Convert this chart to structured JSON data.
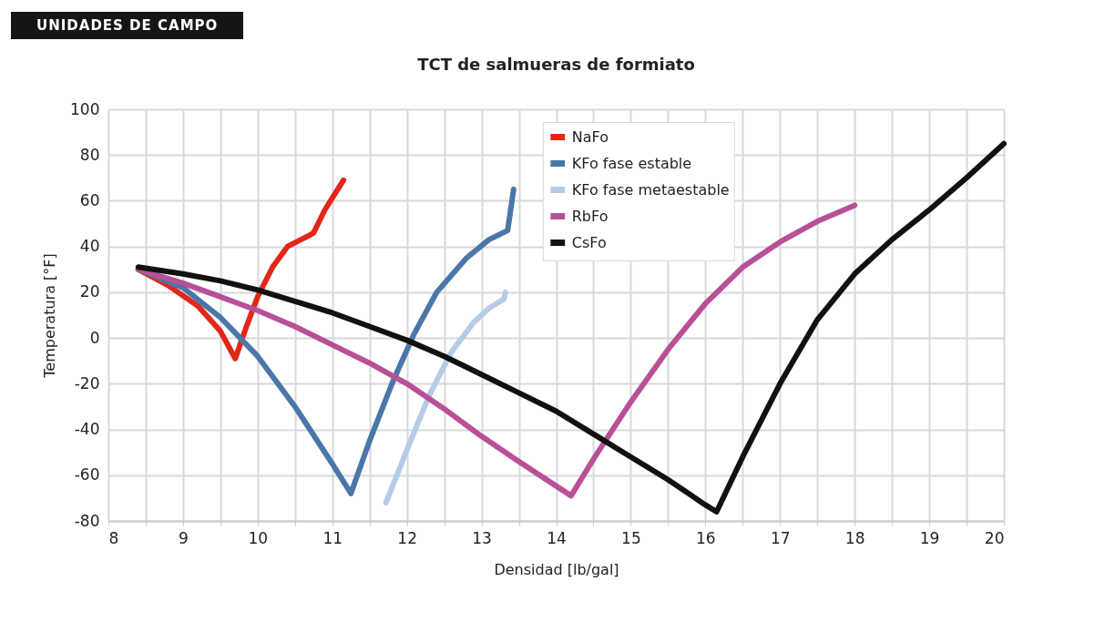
{
  "chart_data": {
    "type": "line",
    "title": "TCT de salmueras de formiato",
    "xlabel": "Densidad [lb/gal]",
    "ylabel": "Temperatura [°F]",
    "annotations": [
      "UNIDADES DE CAMPO"
    ],
    "xlim": [
      8,
      20
    ],
    "ylim": [
      -80,
      100
    ],
    "xticks": [
      8,
      {
        "value": 8.5,
        "label": null
      },
      9,
      {
        "value": 9.5,
        "label": null
      },
      10,
      {
        "value": 10.5,
        "label": null
      },
      11,
      {
        "value": 11.5,
        "label": null
      },
      12,
      {
        "value": 12.5,
        "label": null
      },
      13,
      {
        "value": 13.5,
        "label": null
      },
      14,
      {
        "value": 14.5,
        "label": null
      },
      15,
      {
        "value": 15.5,
        "label": null
      },
      16,
      {
        "value": 16.5,
        "label": null
      },
      17,
      {
        "value": 17.5,
        "label": null
      },
      18,
      {
        "value": 18.5,
        "label": null
      },
      19,
      {
        "value": 19.5,
        "label": null
      },
      20
    ],
    "yticks": [
      -80,
      -60,
      -40,
      -20,
      0,
      20,
      40,
      60,
      80,
      100
    ],
    "grid": true,
    "legend": "top",
    "marker": "none",
    "line_style": "solid",
    "series": [
      {
        "name": "NaFo",
        "color": "#e3261a",
        "x": [
          8.4,
          8.8,
          9.2,
          9.5,
          9.7,
          9.85,
          10.0,
          10.2,
          10.4,
          10.7,
          10.75,
          10.9,
          11.15
        ],
        "values": [
          30,
          23,
          14,
          3,
          -9,
          5,
          18,
          31,
          40,
          45,
          46,
          56,
          69
        ]
      },
      {
        "name": "KFo fase estable",
        "color": "#4a76a8",
        "x": [
          8.4,
          9.0,
          9.5,
          10,
          10.5,
          11.0,
          11.25,
          11.5,
          11.8,
          12.1,
          12.4,
          12.8,
          13.1,
          13.35,
          13.43
        ],
        "values": [
          30,
          22,
          9,
          -8,
          -30,
          -55,
          -68,
          -45,
          -20,
          2,
          20,
          35,
          43,
          47,
          65
        ]
      },
      {
        "name": "KFo fase metaestable",
        "color": "#b5cbe8",
        "x": [
          11.72,
          12.0,
          12.3,
          12.6,
          12.9,
          13.1,
          13.3,
          13.32
        ],
        "values": [
          -72,
          -49,
          -25,
          -6,
          7,
          13,
          17,
          20
        ]
      },
      {
        "name": "RbFo",
        "color": "#b85098",
        "x": [
          8.4,
          9,
          9.5,
          10,
          10.5,
          11,
          11.5,
          12,
          12.5,
          13,
          13.5,
          14.2,
          14.5,
          15,
          15.5,
          16,
          16.5,
          17,
          17.5,
          18
        ],
        "values": [
          30,
          24,
          18,
          12,
          5,
          -3,
          -11,
          -20,
          -31,
          -43,
          -54,
          -69,
          -53,
          -28,
          -5,
          15,
          31,
          42,
          51,
          58
        ]
      },
      {
        "name": "CsFo",
        "color": "#12110d",
        "x": [
          8.4,
          9,
          9.5,
          10,
          10.5,
          11,
          11.5,
          12,
          12.5,
          13,
          13.5,
          14,
          14.5,
          15,
          15.5,
          16,
          16.15,
          16.5,
          17,
          17.5,
          18,
          18.5,
          19,
          19.5,
          20
        ],
        "values": [
          31,
          28,
          25,
          21,
          16,
          11,
          5,
          -1,
          -8,
          -16,
          -24,
          -32,
          -42,
          -52,
          -62,
          -73,
          -76,
          -52,
          -20,
          8,
          28,
          43,
          56,
          70,
          85
        ]
      }
    ]
  }
}
